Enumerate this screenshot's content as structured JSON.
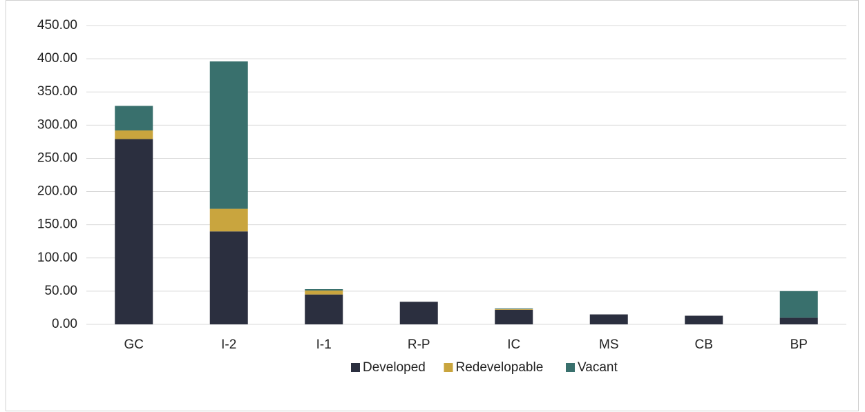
{
  "chart_data": {
    "type": "stacked_bar",
    "categories": [
      "GC",
      "I-2",
      "I-1",
      "R-P",
      "IC",
      "MS",
      "CB",
      "BP"
    ],
    "series": [
      {
        "name": "Developed",
        "color": "#2b2f3f",
        "values": [
          279,
          140,
          45,
          34,
          22,
          15,
          13,
          10
        ]
      },
      {
        "name": "Redevelopable",
        "color": "#c9a53e",
        "values": [
          13,
          34,
          6,
          0,
          1,
          0,
          0,
          0
        ]
      },
      {
        "name": "Vacant",
        "color": "#39706d",
        "values": [
          37,
          222,
          2,
          0,
          1,
          0,
          0,
          40
        ]
      }
    ],
    "ylim": [
      0,
      450
    ],
    "yticks": [
      {
        "value": 0,
        "label": "0.00"
      },
      {
        "value": 50,
        "label": "50.00"
      },
      {
        "value": 100,
        "label": "100.00"
      },
      {
        "value": 150,
        "label": "150.00"
      },
      {
        "value": 200,
        "label": "200.00"
      },
      {
        "value": 250,
        "label": "250.00"
      },
      {
        "value": 300,
        "label": "300.00"
      },
      {
        "value": 350,
        "label": "350.00"
      },
      {
        "value": 400,
        "label": "400.00"
      },
      {
        "value": 450,
        "label": "450.00"
      }
    ],
    "grid": true,
    "legend": "bottom"
  }
}
